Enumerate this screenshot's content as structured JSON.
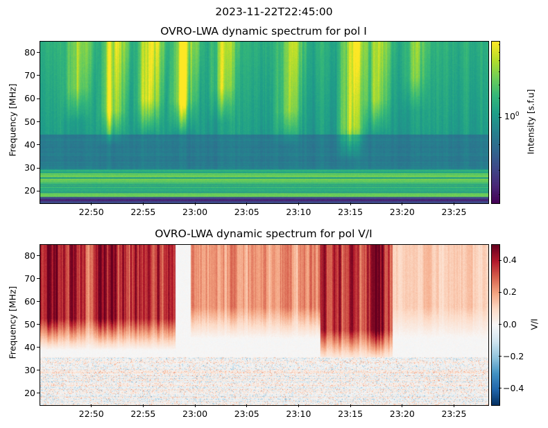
{
  "suptitle": "2023-11-22T22:45:00",
  "chart_data": [
    {
      "type": "heatmap",
      "title": "OVRO-LWA dynamic spectrum for pol I",
      "xlabel": "",
      "ylabel": "Frequency [MHz]",
      "xlim": [
        "22:45:00",
        "23:28:15"
      ],
      "ylim": [
        15,
        85
      ],
      "xticks": [
        "22:50",
        "22:55",
        "23:00",
        "23:05",
        "23:10",
        "23:15",
        "23:20",
        "23:25"
      ],
      "yticks": [
        20,
        30,
        40,
        50,
        60,
        70,
        80
      ],
      "colormap": "viridis",
      "colorbar": {
        "label": "Intensity [s.f.u]",
        "scale": "log",
        "ticks": [
          "10^0"
        ]
      },
      "bands": [
        {
          "fmin": 15,
          "fmax": 18,
          "level": 0.1
        },
        {
          "fmin": 18,
          "fmax": 30,
          "level": 0.68
        },
        {
          "fmin": 30,
          "fmax": 45,
          "level": 0.42
        },
        {
          "fmin": 45,
          "fmax": 85,
          "level": 0.55
        }
      ],
      "bursts": [
        {
          "time_min": 3.5,
          "fmin": 55,
          "strength": 0.6
        },
        {
          "time_min": 7,
          "fmin": 45,
          "strength": 0.9
        },
        {
          "time_min": 10.5,
          "fmin": 50,
          "strength": 0.8
        },
        {
          "time_min": 13.8,
          "fmin": 50,
          "strength": 1.0
        },
        {
          "time_min": 17.5,
          "fmin": 55,
          "strength": 0.6
        },
        {
          "time_min": 24,
          "fmin": 45,
          "strength": 0.55
        },
        {
          "time_min": 30,
          "fmin": 38,
          "strength": 0.8
        },
        {
          "time_min": 32.5,
          "fmin": 50,
          "strength": 0.6
        },
        {
          "time_min": 36,
          "fmin": 60,
          "strength": 0.4
        }
      ]
    },
    {
      "type": "heatmap",
      "title": "OVRO-LWA dynamic spectrum for pol V/I",
      "xlabel": "",
      "ylabel": "Frequency [MHz]",
      "xlim": [
        "22:45:00",
        "23:28:15"
      ],
      "ylim": [
        15,
        85
      ],
      "xticks": [
        "22:50",
        "22:55",
        "23:00",
        "23:05",
        "23:10",
        "23:15",
        "23:20",
        "23:25"
      ],
      "yticks": [
        20,
        30,
        40,
        50,
        60,
        70,
        80
      ],
      "colormap": "RdBu_r",
      "colorbar": {
        "label": "V/I",
        "range": [
          -0.5,
          0.5
        ],
        "ticks": [
          "0.4",
          "0.2",
          "0.0",
          "−0.2",
          "−0.4"
        ],
        "tick_values": [
          0.4,
          0.2,
          0.0,
          -0.2,
          -0.4
        ]
      },
      "regions": [
        {
          "t0": 0,
          "t1": 13,
          "fmin": 45,
          "value": 0.38
        },
        {
          "t0": 13,
          "t1": 14.5,
          "fmin": 50,
          "value": 0.0
        },
        {
          "t0": 14.5,
          "t1": 27,
          "fmin": 50,
          "value": 0.22
        },
        {
          "t0": 27,
          "t1": 34,
          "fmin": 40,
          "value": 0.4
        },
        {
          "t0": 34,
          "t1": 43.25,
          "fmin": 50,
          "value": 0.12
        }
      ]
    }
  ]
}
